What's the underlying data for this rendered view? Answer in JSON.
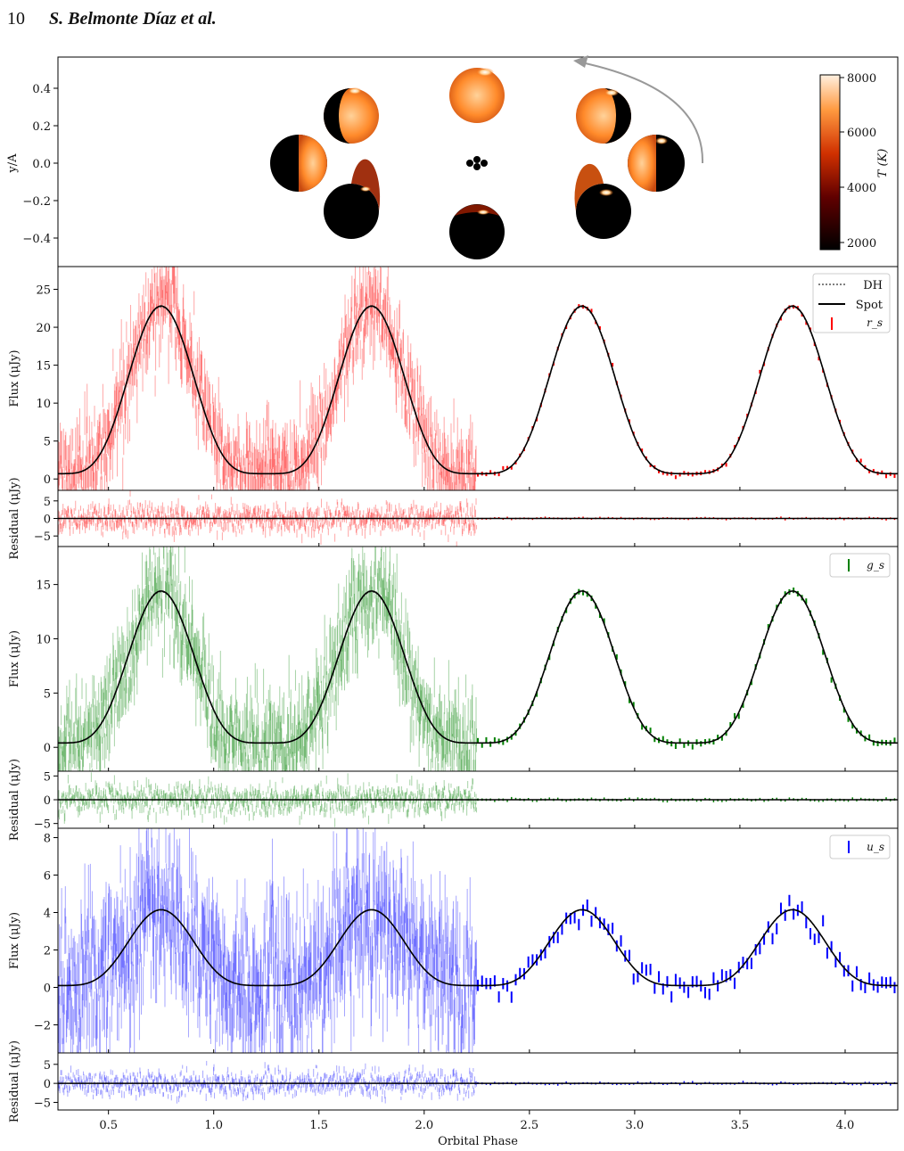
{
  "header": {
    "page_number": "10",
    "authors": "S. Belmonte Díaz et al."
  },
  "colorbar": {
    "label": "T (K)",
    "ticks": [
      "8000",
      "6000",
      "4000",
      "2000"
    ]
  },
  "star_panel": {
    "ylabel": "y/A",
    "yticks": [
      "0.4",
      "0.2",
      "0.0",
      "−0.2",
      "−0.4"
    ]
  },
  "xaxis": {
    "label": "Orbital Phase",
    "ticks": [
      "0.5",
      "1.0",
      "1.5",
      "2.0",
      "2.5",
      "3.0",
      "3.5",
      "4.0"
    ]
  },
  "legend": {
    "dh": "DH",
    "spot": "Spot"
  },
  "colors": {
    "r": "#ff0000",
    "g": "#008000",
    "u": "#0000ff",
    "model": "#000000"
  },
  "chart_data": [
    {
      "type": "line",
      "band": "r_s",
      "legend": "r_s",
      "ylabel": "Flux (μJy)",
      "ylim": [
        -1.5,
        28
      ],
      "yticks": [
        0,
        5,
        10,
        15,
        20,
        25
      ],
      "xlim": [
        0.26,
        4.25
      ],
      "model": {
        "min": 0.7,
        "max": 22.8,
        "peaks": [
          0.75,
          1.75,
          2.75,
          3.75
        ]
      },
      "scatter_noise": 3.0,
      "residual": {
        "ylabel": "Residual (μJy)",
        "ylim": [
          -8,
          8
        ],
        "yticks": [
          5,
          0,
          -5
        ],
        "noise": 2.0
      }
    },
    {
      "type": "line",
      "band": "g_s",
      "legend": "g_s",
      "ylabel": "Flux (μJy)",
      "ylim": [
        -2.2,
        18.5
      ],
      "yticks": [
        0,
        5,
        10,
        15
      ],
      "xlim": [
        0.26,
        4.25
      ],
      "model": {
        "min": 0.4,
        "max": 14.4,
        "peaks": [
          0.75,
          1.75,
          2.75,
          3.75
        ]
      },
      "scatter_noise": 2.2,
      "residual": {
        "ylabel": "Residual (μJy)",
        "ylim": [
          -6,
          6
        ],
        "yticks": [
          5,
          0,
          -5
        ],
        "noise": 1.6
      }
    },
    {
      "type": "line",
      "band": "u_s",
      "legend": "u_s",
      "ylabel": "Flux (μJy)",
      "ylim": [
        -3.5,
        8.5
      ],
      "yticks": [
        -2,
        0,
        2,
        4,
        6,
        8
      ],
      "xlim": [
        0.26,
        4.25
      ],
      "model": {
        "min": 0.1,
        "max": 4.15,
        "peaks": [
          0.75,
          1.75,
          2.75,
          3.75
        ]
      },
      "scatter_noise": 2.0,
      "residual": {
        "ylabel": "Residual (μJy)",
        "ylim": [
          -7,
          8
        ],
        "yticks": [
          5,
          0,
          -5
        ],
        "noise": 1.6
      }
    }
  ]
}
